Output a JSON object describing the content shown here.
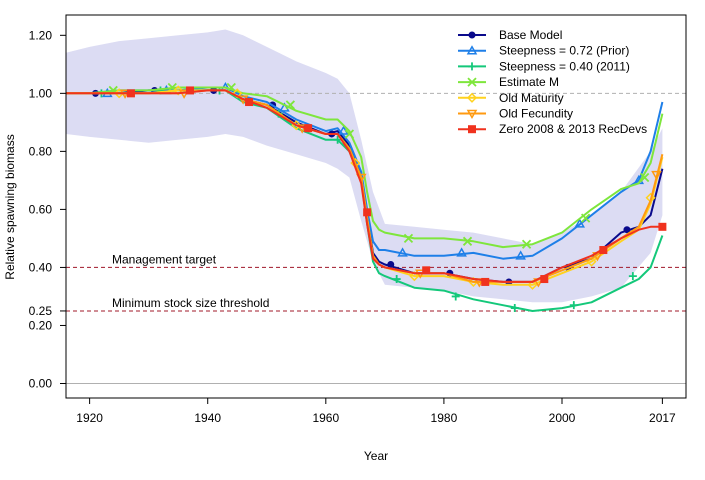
{
  "chart_data": {
    "type": "line",
    "xlabel": "Year",
    "ylabel": "Relative spawning biomass",
    "xlim": [
      1916,
      2021
    ],
    "ylim": [
      -0.05,
      1.27
    ],
    "x_ticks": [
      1920,
      1940,
      1960,
      1980,
      2000,
      2017
    ],
    "y_ticks": [
      0.0,
      0.2,
      0.25,
      0.4,
      0.6,
      0.8,
      1.0,
      1.2
    ],
    "y_tick_labels": [
      "0.00",
      "0.20",
      "0.25",
      "0.40",
      "0.60",
      "0.80",
      "1.00",
      "1.20"
    ],
    "reference_lines": [
      {
        "y": 1.0,
        "style": "dashed",
        "color": "#b0b0b0",
        "label": ""
      },
      {
        "y": 0.4,
        "style": "dashed",
        "color": "#a0182a",
        "label": "Management target"
      },
      {
        "y": 0.25,
        "style": "dashed",
        "color": "#a0182a",
        "label": "Minimum stock size threshold"
      }
    ],
    "zero_line": {
      "y": 0.0,
      "color": "#b0b0b0"
    },
    "legend_position": "top-right",
    "uncertainty_band": {
      "color": "#dcdcf3",
      "x": [
        1916,
        1920,
        1925,
        1930,
        1935,
        1940,
        1943,
        1946,
        1950,
        1955,
        1960,
        1962,
        1964,
        1966,
        1968,
        1970,
        1975,
        1980,
        1985,
        1990,
        1995,
        2000,
        2005,
        2010,
        2015,
        2017
      ],
      "upper": [
        1.14,
        1.16,
        1.18,
        1.19,
        1.2,
        1.21,
        1.22,
        1.2,
        1.16,
        1.11,
        1.07,
        1.05,
        1.0,
        0.84,
        0.66,
        0.55,
        0.54,
        0.53,
        0.52,
        0.5,
        0.48,
        0.52,
        0.58,
        0.66,
        0.8,
        0.88
      ],
      "lower": [
        0.86,
        0.85,
        0.84,
        0.83,
        0.84,
        0.85,
        0.86,
        0.85,
        0.82,
        0.79,
        0.76,
        0.74,
        0.71,
        0.56,
        0.42,
        0.34,
        0.33,
        0.32,
        0.3,
        0.29,
        0.28,
        0.28,
        0.3,
        0.33,
        0.45,
        0.58
      ]
    },
    "series": [
      {
        "name": "Base Model",
        "color": "#0a0a8c",
        "marker": "circle",
        "x": [
          1916,
          1920,
          1925,
          1930,
          1935,
          1940,
          1943,
          1946,
          1950,
          1955,
          1960,
          1962,
          1964,
          1966,
          1967,
          1968,
          1969,
          1970,
          1975,
          1980,
          1985,
          1990,
          1995,
          2000,
          2005,
          2010,
          2013,
          2015,
          2017
        ],
        "y": [
          1.0,
          1.0,
          1.0,
          1.01,
          1.01,
          1.01,
          1.01,
          0.98,
          0.96,
          0.9,
          0.86,
          0.87,
          0.82,
          0.72,
          0.58,
          0.45,
          0.42,
          0.41,
          0.38,
          0.38,
          0.36,
          0.35,
          0.35,
          0.4,
          0.43,
          0.52,
          0.54,
          0.58,
          0.74
        ],
        "marker_x": [
          1921,
          1931,
          1941,
          1951,
          1961,
          1971,
          1981,
          1991,
          2001,
          2011
        ],
        "marker_y": [
          1.0,
          1.01,
          1.01,
          0.96,
          0.86,
          0.41,
          0.38,
          0.35,
          0.4,
          0.53
        ]
      },
      {
        "name": "Steepness = 0.72 (Prior)",
        "color": "#1e7fe8",
        "marker": "triangle",
        "x": [
          1916,
          1920,
          1925,
          1930,
          1935,
          1940,
          1943,
          1946,
          1950,
          1955,
          1960,
          1962,
          1964,
          1966,
          1967,
          1968,
          1969,
          1970,
          1975,
          1980,
          1985,
          1990,
          1995,
          2000,
          2005,
          2010,
          2013,
          2015,
          2017
        ],
        "y": [
          1.0,
          1.0,
          1.01,
          1.01,
          1.01,
          1.02,
          1.02,
          0.99,
          0.97,
          0.91,
          0.87,
          0.88,
          0.83,
          0.73,
          0.6,
          0.49,
          0.46,
          0.46,
          0.44,
          0.44,
          0.45,
          0.43,
          0.44,
          0.5,
          0.58,
          0.66,
          0.7,
          0.8,
          0.97
        ],
        "marker_x": [
          1923,
          1933,
          1943,
          1953,
          1963,
          1973,
          1983,
          1993,
          2003,
          2013
        ],
        "marker_y": [
          1.0,
          1.01,
          1.02,
          0.95,
          0.87,
          0.45,
          0.45,
          0.44,
          0.55,
          0.7
        ]
      },
      {
        "name": "Steepness = 0.40 (2011)",
        "color": "#14c87a",
        "marker": "plus",
        "x": [
          1916,
          1920,
          1925,
          1930,
          1935,
          1940,
          1943,
          1946,
          1950,
          1955,
          1960,
          1962,
          1964,
          1966,
          1967,
          1968,
          1969,
          1970,
          1975,
          1980,
          1985,
          1990,
          1995,
          2000,
          2005,
          2010,
          2013,
          2015,
          2017
        ],
        "y": [
          1.0,
          1.0,
          1.0,
          1.0,
          1.01,
          1.01,
          1.01,
          0.97,
          0.95,
          0.88,
          0.84,
          0.84,
          0.8,
          0.7,
          0.55,
          0.42,
          0.38,
          0.37,
          0.33,
          0.32,
          0.29,
          0.27,
          0.25,
          0.26,
          0.28,
          0.33,
          0.36,
          0.4,
          0.51
        ],
        "marker_x": [
          1922,
          1932,
          1942,
          1952,
          1962,
          1972,
          1982,
          1992,
          2002,
          2012
        ],
        "marker_y": [
          1.0,
          1.01,
          1.01,
          0.93,
          0.84,
          0.36,
          0.3,
          0.26,
          0.27,
          0.37
        ]
      },
      {
        "name": "Estimate M",
        "color": "#7ee63c",
        "marker": "x",
        "x": [
          1916,
          1920,
          1925,
          1930,
          1935,
          1940,
          1943,
          1946,
          1950,
          1955,
          1960,
          1962,
          1964,
          1966,
          1967,
          1968,
          1969,
          1970,
          1975,
          1980,
          1985,
          1990,
          1995,
          2000,
          2005,
          2010,
          2013,
          2015,
          2017
        ],
        "y": [
          1.0,
          1.0,
          1.01,
          1.01,
          1.02,
          1.02,
          1.02,
          1.0,
          0.99,
          0.94,
          0.91,
          0.91,
          0.87,
          0.78,
          0.66,
          0.56,
          0.53,
          0.52,
          0.5,
          0.5,
          0.49,
          0.47,
          0.48,
          0.52,
          0.6,
          0.67,
          0.69,
          0.76,
          0.93
        ],
        "marker_x": [
          1924,
          1934,
          1944,
          1954,
          1964,
          1974,
          1984,
          1994,
          2004,
          2014
        ],
        "marker_y": [
          1.01,
          1.02,
          1.02,
          0.96,
          0.86,
          0.5,
          0.49,
          0.48,
          0.57,
          0.71
        ]
      },
      {
        "name": "Old Maturity",
        "color": "#ffd21e",
        "marker": "diamond",
        "x": [
          1916,
          1920,
          1925,
          1930,
          1935,
          1940,
          1943,
          1946,
          1950,
          1955,
          1960,
          1962,
          1964,
          1966,
          1967,
          1968,
          1969,
          1970,
          1975,
          1980,
          1985,
          1990,
          1995,
          2000,
          2005,
          2010,
          2013,
          2015,
          2017
        ],
        "y": [
          1.0,
          1.0,
          1.0,
          1.0,
          1.01,
          1.01,
          1.01,
          0.98,
          0.96,
          0.89,
          0.86,
          0.86,
          0.81,
          0.71,
          0.57,
          0.44,
          0.41,
          0.4,
          0.37,
          0.37,
          0.35,
          0.34,
          0.34,
          0.38,
          0.42,
          0.49,
          0.53,
          0.62,
          0.78
        ],
        "marker_x": [
          1925,
          1935,
          1945,
          1955,
          1965,
          1975,
          1985,
          1995,
          2005,
          2015
        ],
        "marker_y": [
          1.0,
          1.01,
          1.0,
          0.89,
          0.76,
          0.37,
          0.35,
          0.34,
          0.42,
          0.64
        ]
      },
      {
        "name": "Old Fecundity",
        "color": "#ff9a10",
        "marker": "triangle-down",
        "x": [
          1916,
          1920,
          1925,
          1930,
          1935,
          1940,
          1943,
          1946,
          1950,
          1955,
          1960,
          1962,
          1964,
          1966,
          1967,
          1968,
          1969,
          1970,
          1975,
          1980,
          1985,
          1990,
          1995,
          2000,
          2005,
          2010,
          2013,
          2015,
          2017
        ],
        "y": [
          1.0,
          1.0,
          1.0,
          1.0,
          1.0,
          1.01,
          1.01,
          0.98,
          0.96,
          0.89,
          0.86,
          0.86,
          0.81,
          0.71,
          0.57,
          0.44,
          0.41,
          0.4,
          0.38,
          0.38,
          0.35,
          0.35,
          0.35,
          0.39,
          0.43,
          0.5,
          0.54,
          0.63,
          0.79
        ],
        "marker_x": [
          1926,
          1936,
          1946,
          1956,
          1966,
          1976,
          1986,
          1996,
          2006,
          2016
        ],
        "marker_y": [
          1.0,
          1.0,
          0.98,
          0.88,
          0.71,
          0.38,
          0.35,
          0.35,
          0.44,
          0.72
        ]
      },
      {
        "name": "Zero 2008 & 2013 RecDevs",
        "color": "#f0321e",
        "marker": "square",
        "x": [
          1916,
          1920,
          1925,
          1930,
          1935,
          1940,
          1943,
          1946,
          1950,
          1955,
          1960,
          1962,
          1964,
          1966,
          1967,
          1968,
          1969,
          1970,
          1975,
          1980,
          1985,
          1990,
          1995,
          2000,
          2005,
          2010,
          2013,
          2015,
          2017
        ],
        "y": [
          1.0,
          1.0,
          1.0,
          1.0,
          1.0,
          1.01,
          1.01,
          0.98,
          0.95,
          0.89,
          0.86,
          0.86,
          0.8,
          0.69,
          0.55,
          0.43,
          0.41,
          0.4,
          0.38,
          0.38,
          0.36,
          0.35,
          0.35,
          0.4,
          0.44,
          0.5,
          0.53,
          0.54,
          0.54
        ],
        "marker_x": [
          1927,
          1937,
          1947,
          1957,
          1967,
          1977,
          1987,
          1997,
          2007,
          2017
        ],
        "marker_y": [
          1.0,
          1.01,
          0.97,
          0.88,
          0.59,
          0.39,
          0.35,
          0.36,
          0.46,
          0.54
        ]
      }
    ]
  }
}
